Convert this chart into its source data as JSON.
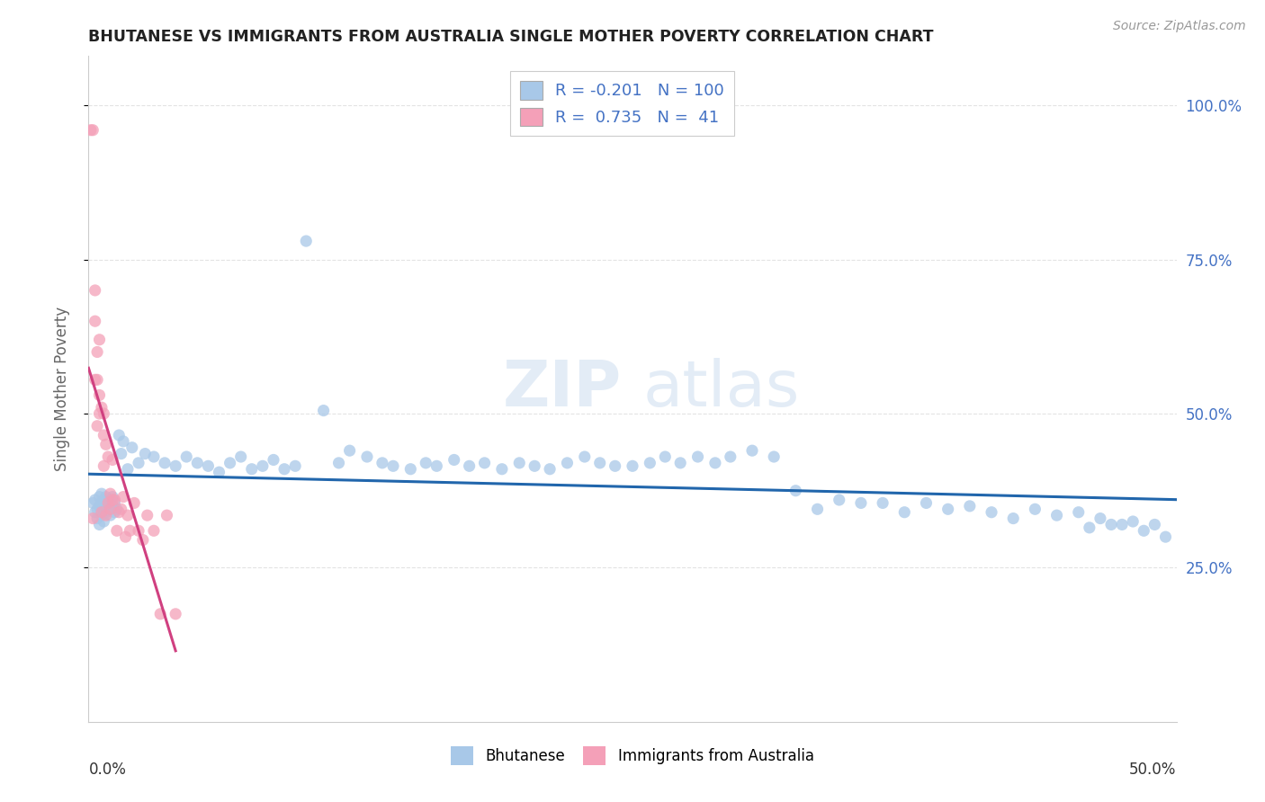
{
  "title": "BHUTANESE VS IMMIGRANTS FROM AUSTRALIA SINGLE MOTHER POVERTY CORRELATION CHART",
  "source": "Source: ZipAtlas.com",
  "ylabel": "Single Mother Poverty",
  "ytick_vals": [
    0.25,
    0.5,
    0.75,
    1.0
  ],
  "xlim": [
    0.0,
    0.5
  ],
  "ylim": [
    0.0,
    1.08
  ],
  "R_bhutanese": -0.201,
  "N_bhutanese": 100,
  "R_australia": 0.735,
  "N_australia": 41,
  "blue_color": "#a8c8e8",
  "pink_color": "#f4a0b8",
  "blue_line_color": "#2166ac",
  "pink_line_color": "#d04080",
  "title_color": "#222222",
  "axis_label_color": "#666666",
  "right_tick_color": "#4472c4",
  "background_color": "#ffffff",
  "grid_color": "#e0e0e0",
  "bhutanese_x": [
    0.002,
    0.003,
    0.003,
    0.004,
    0.004,
    0.005,
    0.005,
    0.005,
    0.006,
    0.006,
    0.006,
    0.007,
    0.007,
    0.007,
    0.008,
    0.008,
    0.008,
    0.009,
    0.009,
    0.01,
    0.01,
    0.01,
    0.011,
    0.011,
    0.012,
    0.012,
    0.013,
    0.014,
    0.015,
    0.016,
    0.018,
    0.02,
    0.023,
    0.026,
    0.03,
    0.035,
    0.04,
    0.045,
    0.05,
    0.055,
    0.06,
    0.065,
    0.07,
    0.075,
    0.08,
    0.085,
    0.09,
    0.095,
    0.1,
    0.108,
    0.115,
    0.12,
    0.128,
    0.135,
    0.14,
    0.148,
    0.155,
    0.16,
    0.168,
    0.175,
    0.182,
    0.19,
    0.198,
    0.205,
    0.212,
    0.22,
    0.228,
    0.235,
    0.242,
    0.25,
    0.258,
    0.265,
    0.272,
    0.28,
    0.288,
    0.295,
    0.305,
    0.315,
    0.325,
    0.335,
    0.345,
    0.355,
    0.365,
    0.375,
    0.385,
    0.395,
    0.405,
    0.415,
    0.425,
    0.435,
    0.445,
    0.455,
    0.46,
    0.465,
    0.47,
    0.475,
    0.48,
    0.485,
    0.49,
    0.495
  ],
  "bhutanese_y": [
    0.355,
    0.34,
    0.36,
    0.33,
    0.345,
    0.32,
    0.35,
    0.365,
    0.335,
    0.355,
    0.37,
    0.34,
    0.36,
    0.325,
    0.35,
    0.34,
    0.365,
    0.345,
    0.355,
    0.335,
    0.36,
    0.345,
    0.35,
    0.365,
    0.34,
    0.355,
    0.345,
    0.465,
    0.435,
    0.455,
    0.41,
    0.445,
    0.42,
    0.435,
    0.43,
    0.42,
    0.415,
    0.43,
    0.42,
    0.415,
    0.405,
    0.42,
    0.43,
    0.41,
    0.415,
    0.425,
    0.41,
    0.415,
    0.78,
    0.505,
    0.42,
    0.44,
    0.43,
    0.42,
    0.415,
    0.41,
    0.42,
    0.415,
    0.425,
    0.415,
    0.42,
    0.41,
    0.42,
    0.415,
    0.41,
    0.42,
    0.43,
    0.42,
    0.415,
    0.415,
    0.42,
    0.43,
    0.42,
    0.43,
    0.42,
    0.43,
    0.44,
    0.43,
    0.375,
    0.345,
    0.36,
    0.355,
    0.355,
    0.34,
    0.355,
    0.345,
    0.35,
    0.34,
    0.33,
    0.345,
    0.335,
    0.34,
    0.315,
    0.33,
    0.32,
    0.32,
    0.325,
    0.31,
    0.32,
    0.3
  ],
  "australia_x": [
    0.001,
    0.002,
    0.002,
    0.003,
    0.003,
    0.003,
    0.004,
    0.004,
    0.004,
    0.005,
    0.005,
    0.005,
    0.006,
    0.006,
    0.007,
    0.007,
    0.007,
    0.008,
    0.008,
    0.009,
    0.009,
    0.01,
    0.01,
    0.011,
    0.011,
    0.012,
    0.013,
    0.014,
    0.015,
    0.016,
    0.017,
    0.018,
    0.019,
    0.021,
    0.023,
    0.025,
    0.027,
    0.03,
    0.033,
    0.036,
    0.04
  ],
  "australia_y": [
    0.96,
    0.96,
    0.33,
    0.7,
    0.65,
    0.555,
    0.6,
    0.555,
    0.48,
    0.5,
    0.53,
    0.62,
    0.51,
    0.34,
    0.465,
    0.5,
    0.415,
    0.45,
    0.335,
    0.43,
    0.355,
    0.37,
    0.345,
    0.36,
    0.425,
    0.36,
    0.31,
    0.34,
    0.345,
    0.365,
    0.3,
    0.335,
    0.31,
    0.355,
    0.31,
    0.295,
    0.335,
    0.31,
    0.175,
    0.335,
    0.175
  ]
}
